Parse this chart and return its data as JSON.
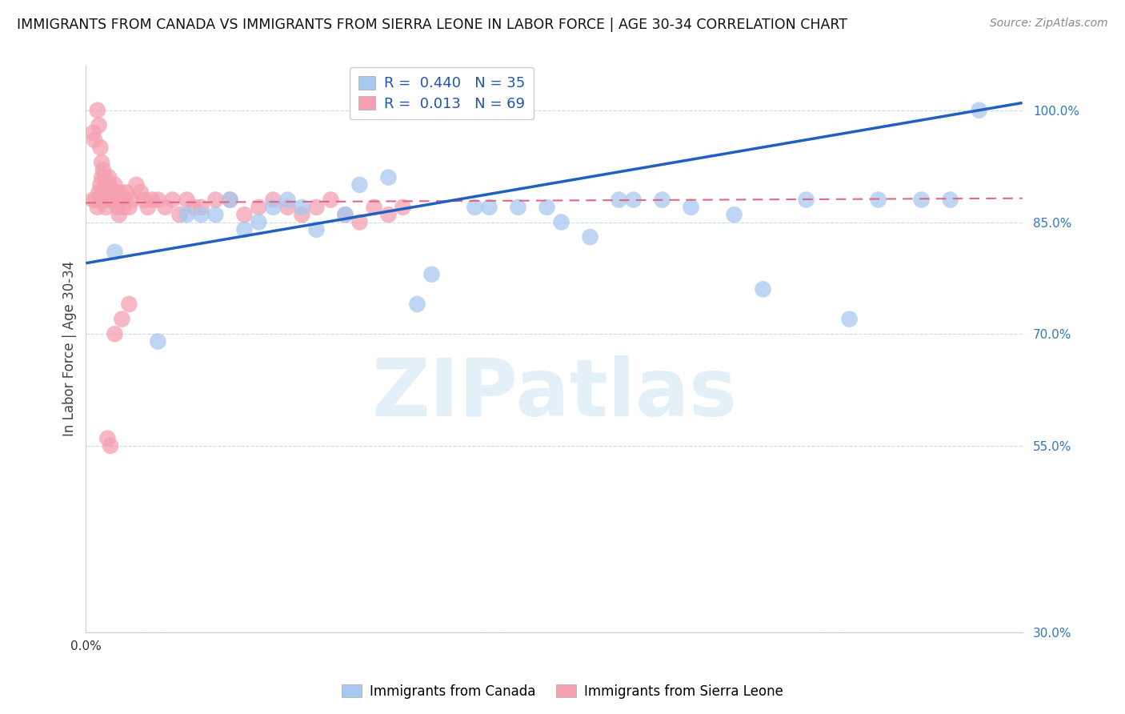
{
  "title": "IMMIGRANTS FROM CANADA VS IMMIGRANTS FROM SIERRA LEONE IN LABOR FORCE | AGE 30-34 CORRELATION CHART",
  "source": "Source: ZipAtlas.com",
  "ylabel": "In Labor Force | Age 30-34",
  "xlim": [
    0.0,
    0.65
  ],
  "ylim": [
    0.3,
    1.06
  ],
  "yticks": [
    0.3,
    0.55,
    0.7,
    0.85,
    1.0
  ],
  "ytick_labels": [
    "30.0%",
    "55.0%",
    "70.0%",
    "85.0%",
    "100.0%"
  ],
  "legend_r_canada": "0.440",
  "legend_n_canada": "35",
  "legend_r_sierra": "0.013",
  "legend_n_sierra": "69",
  "canada_color": "#a8c8f0",
  "sierra_color": "#f4a0b0",
  "canada_line_color": "#2060c0",
  "sierra_line_color": "#e06880",
  "watermark_text": "ZIPatlas",
  "canada_x": [
    0.02,
    0.05,
    0.07,
    0.09,
    0.1,
    0.11,
    0.12,
    0.13,
    0.14,
    0.16,
    0.18,
    0.21,
    0.24,
    0.27,
    0.3,
    0.32,
    0.35,
    0.37,
    0.4,
    0.42,
    0.45,
    0.47,
    0.5,
    0.53,
    0.55,
    0.58,
    0.6,
    0.62,
    0.08,
    0.15,
    0.19,
    0.23,
    0.28,
    0.33,
    0.38
  ],
  "canada_y": [
    0.81,
    0.69,
    0.86,
    0.86,
    0.88,
    0.84,
    0.85,
    0.87,
    0.88,
    0.84,
    0.86,
    0.91,
    0.78,
    0.87,
    0.87,
    0.87,
    0.83,
    0.88,
    0.88,
    0.87,
    0.86,
    0.76,
    0.88,
    0.72,
    0.88,
    0.88,
    0.88,
    1.0,
    0.86,
    0.87,
    0.9,
    0.74,
    0.87,
    0.85,
    0.88
  ],
  "sierra_x": [
    0.005,
    0.007,
    0.008,
    0.009,
    0.01,
    0.01,
    0.011,
    0.012,
    0.012,
    0.013,
    0.014,
    0.015,
    0.015,
    0.016,
    0.016,
    0.017,
    0.017,
    0.018,
    0.019,
    0.02,
    0.021,
    0.022,
    0.023,
    0.024,
    0.025,
    0.026,
    0.027,
    0.028,
    0.03,
    0.032,
    0.035,
    0.038,
    0.04,
    0.043,
    0.046,
    0.05,
    0.055,
    0.06,
    0.065,
    0.07,
    0.075,
    0.08,
    0.09,
    0.1,
    0.11,
    0.12,
    0.13,
    0.14,
    0.15,
    0.16,
    0.17,
    0.18,
    0.19,
    0.2,
    0.21,
    0.22,
    0.005,
    0.006,
    0.008,
    0.009,
    0.01,
    0.011,
    0.012,
    0.013,
    0.015,
    0.017,
    0.02,
    0.025,
    0.03
  ],
  "sierra_y": [
    0.88,
    0.88,
    0.87,
    0.89,
    0.9,
    0.88,
    0.91,
    0.88,
    0.89,
    0.88,
    0.87,
    0.9,
    0.89,
    0.9,
    0.91,
    0.89,
    0.88,
    0.88,
    0.89,
    0.9,
    0.89,
    0.87,
    0.86,
    0.89,
    0.88,
    0.87,
    0.88,
    0.89,
    0.87,
    0.88,
    0.9,
    0.89,
    0.88,
    0.87,
    0.88,
    0.88,
    0.87,
    0.88,
    0.86,
    0.88,
    0.87,
    0.87,
    0.88,
    0.88,
    0.86,
    0.87,
    0.88,
    0.87,
    0.86,
    0.87,
    0.88,
    0.86,
    0.85,
    0.87,
    0.86,
    0.87,
    0.97,
    0.96,
    1.0,
    0.98,
    0.95,
    0.93,
    0.92,
    0.91,
    0.56,
    0.55,
    0.7,
    0.72,
    0.74
  ],
  "canada_trend_x0": 0.0,
  "canada_trend_y0": 0.795,
  "canada_trend_x1": 0.65,
  "canada_trend_y1": 1.01,
  "sierra_trend_x0": 0.0,
  "sierra_trend_y0": 0.876,
  "sierra_trend_x1": 0.65,
  "sierra_trend_y1": 0.882
}
